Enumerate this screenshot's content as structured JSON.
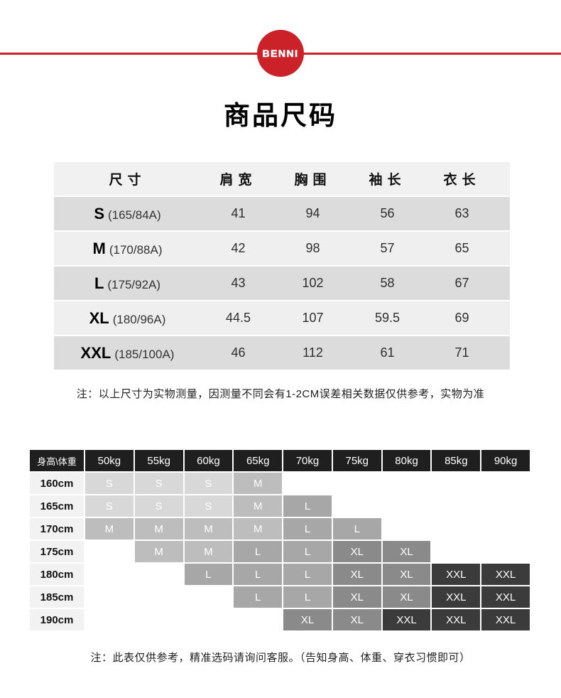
{
  "brand": {
    "logo_text": "BENNI",
    "accent_color": "#cb2229"
  },
  "page_title": "商品尺码",
  "size_table": {
    "columns": [
      "尺寸",
      "肩宽",
      "胸围",
      "袖长",
      "衣长"
    ],
    "rows": [
      {
        "size": "S",
        "spec": "(165/84A)",
        "values": [
          "41",
          "94",
          "56",
          "63"
        ]
      },
      {
        "size": "M",
        "spec": "(170/88A)",
        "values": [
          "42",
          "98",
          "57",
          "65"
        ]
      },
      {
        "size": "L",
        "spec": "(175/92A)",
        "values": [
          "43",
          "102",
          "58",
          "67"
        ]
      },
      {
        "size": "XL",
        "spec": "(180/96A)",
        "values": [
          "44.5",
          "107",
          "59.5",
          "69"
        ]
      },
      {
        "size": "XXL",
        "spec": "(185/100A)",
        "values": [
          "46",
          "112",
          "61",
          "71"
        ]
      }
    ],
    "note": "注：以上尺寸为实物测量，因测量不同会有1-2CM误差相关数据仅供参考，实物为准"
  },
  "fit_matrix": {
    "corner_label": "身高\\体重",
    "weights": [
      "50kg",
      "55kg",
      "60kg",
      "65kg",
      "70kg",
      "75kg",
      "80kg",
      "85kg",
      "90kg"
    ],
    "rows": [
      {
        "height": "160cm",
        "cells": [
          "S",
          "S",
          "S",
          "M",
          "",
          "",
          "",
          "",
          ""
        ]
      },
      {
        "height": "165cm",
        "cells": [
          "S",
          "S",
          "S",
          "M",
          "L",
          "",
          "",
          "",
          ""
        ]
      },
      {
        "height": "170cm",
        "cells": [
          "M",
          "M",
          "M",
          "M",
          "L",
          "L",
          "",
          "",
          ""
        ]
      },
      {
        "height": "175cm",
        "cells": [
          "",
          "M",
          "M",
          "L",
          "L",
          "XL",
          "XL",
          "",
          ""
        ]
      },
      {
        "height": "180cm",
        "cells": [
          "",
          "",
          "L",
          "L",
          "L",
          "XL",
          "XL",
          "XXL",
          "XXL"
        ]
      },
      {
        "height": "185cm",
        "cells": [
          "",
          "",
          "",
          "L",
          "L",
          "XL",
          "XL",
          "XXL",
          "XXL"
        ]
      },
      {
        "height": "190cm",
        "cells": [
          "",
          "",
          "",
          "",
          "XL",
          "XL",
          "XXL",
          "XXL",
          "XXL"
        ]
      }
    ],
    "size_colors": {
      "S": "#d8d8d8",
      "M": "#bdbdbd",
      "L": "#a7a7a7",
      "XL": "#8a8a8a",
      "XXL": "#3b3b3b"
    },
    "header_bg": "#1f1f1f",
    "note": "注：此表仅供参考，精准选码请询问客服。（告知身高、体重、穿衣习惯即可）"
  }
}
